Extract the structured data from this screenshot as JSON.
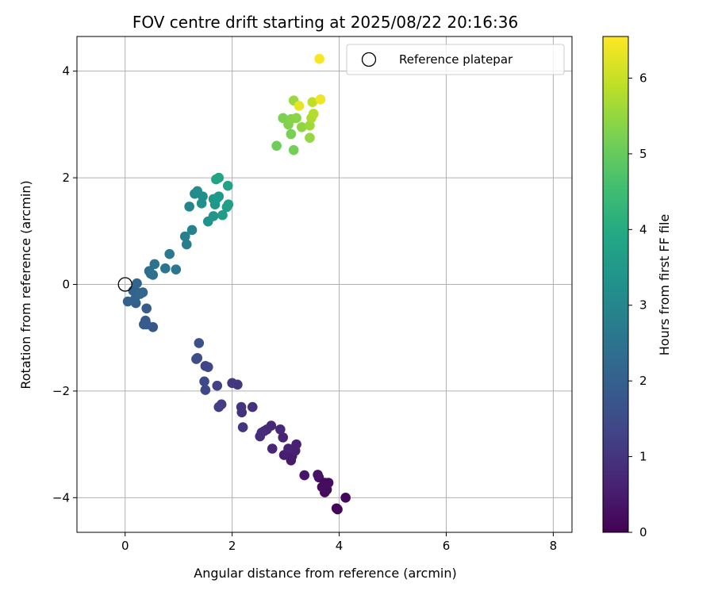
{
  "chart_data": {
    "type": "scatter",
    "title": "FOV centre drift starting at 2025/08/22 20:16:36",
    "xlabel": "Angular distance from reference (arcmin)",
    "ylabel": "Rotation from reference (arcmin)",
    "xlim": [
      -0.9,
      8.35
    ],
    "ylim": [
      -4.65,
      4.65
    ],
    "xticks": [
      0,
      2,
      4,
      6,
      8
    ],
    "yticks": [
      -4,
      -2,
      0,
      2,
      4
    ],
    "xtick_labels": [
      "0",
      "2",
      "4",
      "6",
      "8"
    ],
    "ytick_labels": [
      "−4",
      "−2",
      "0",
      "2",
      "4"
    ],
    "grid": true,
    "colormap": "viridis",
    "colorbar": {
      "label": "Hours from first FF file",
      "range": [
        0,
        6.55
      ],
      "ticks": [
        0,
        1,
        2,
        3,
        4,
        5,
        6
      ],
      "tick_labels": [
        "0",
        "1",
        "2",
        "3",
        "4",
        "5",
        "6"
      ]
    },
    "legend": {
      "position": "upper-right",
      "entries": [
        {
          "label": "Reference platepar",
          "marker": "open-circle"
        }
      ]
    },
    "reference_point": {
      "x": 0,
      "y": 0,
      "label": "Reference platepar"
    },
    "series": [
      {
        "points": [
          [
            3.95,
            -4.2
          ],
          [
            3.97,
            -4.22
          ],
          [
            4.12,
            -4.0
          ],
          [
            3.73,
            -3.9
          ],
          [
            3.77,
            -3.85
          ],
          [
            3.68,
            -3.8
          ],
          [
            3.8,
            -3.72
          ],
          [
            3.62,
            -3.62
          ],
          [
            3.6,
            -3.57
          ],
          [
            3.35,
            -3.58
          ],
          [
            3.73,
            -3.72
          ],
          [
            3.1,
            -3.3
          ],
          [
            3.12,
            -3.22
          ],
          [
            2.97,
            -3.2
          ],
          [
            3.18,
            -3.12
          ],
          [
            3.2,
            -3.0
          ],
          [
            3.05,
            -3.08
          ],
          [
            2.95,
            -2.87
          ],
          [
            2.75,
            -3.08
          ],
          [
            2.9,
            -2.72
          ],
          [
            2.73,
            -2.65
          ],
          [
            2.65,
            -2.72
          ],
          [
            2.6,
            -2.75
          ],
          [
            2.52,
            -2.85
          ],
          [
            2.55,
            -2.78
          ],
          [
            2.38,
            -2.3
          ],
          [
            2.18,
            -2.4
          ],
          [
            2.17,
            -2.3
          ],
          [
            2.2,
            -2.68
          ],
          [
            2.1,
            -1.88
          ],
          [
            2.0,
            -1.85
          ],
          [
            1.8,
            -2.25
          ],
          [
            1.75,
            -2.3
          ],
          [
            1.72,
            -1.9
          ],
          [
            1.5,
            -1.53
          ],
          [
            1.55,
            -1.55
          ],
          [
            1.5,
            -1.98
          ],
          [
            1.48,
            -1.82
          ],
          [
            1.35,
            -1.38
          ],
          [
            1.33,
            -1.4
          ],
          [
            1.38,
            -1.1
          ]
        ],
        "hours": [
          0.05,
          0.08,
          0.12,
          0.15,
          0.18,
          0.22,
          0.25,
          0.3,
          0.33,
          0.37,
          0.2,
          0.45,
          0.5,
          0.55,
          0.58,
          0.6,
          0.62,
          0.65,
          0.7,
          0.72,
          0.75,
          0.78,
          0.8,
          0.83,
          0.85,
          0.9,
          0.95,
          0.97,
          1.0,
          1.05,
          1.08,
          1.15,
          1.2,
          1.25,
          1.3,
          1.35,
          1.4,
          1.45,
          1.5,
          1.55,
          1.6
        ]
      },
      {
        "points": [
          [
            0.52,
            -0.8
          ],
          [
            0.38,
            -0.68
          ],
          [
            0.4,
            -0.75
          ],
          [
            0.4,
            -0.45
          ],
          [
            0.35,
            -0.75
          ],
          [
            0.2,
            -0.35
          ],
          [
            0.05,
            -0.32
          ],
          [
            0.18,
            -0.28
          ],
          [
            0.15,
            -0.12
          ],
          [
            0.22,
            -0.15
          ],
          [
            0.33,
            -0.15
          ],
          [
            0.22,
            0.02
          ],
          [
            0.28,
            -0.18
          ],
          [
            0.48,
            0.2
          ],
          [
            0.45,
            0.25
          ],
          [
            0.52,
            0.18
          ],
          [
            0.55,
            0.38
          ],
          [
            0.75,
            0.3
          ],
          [
            0.95,
            0.28
          ],
          [
            0.83,
            0.57
          ],
          [
            1.15,
            0.75
          ],
          [
            1.12,
            0.9
          ],
          [
            1.25,
            1.02
          ],
          [
            1.2,
            1.46
          ]
        ],
        "hours": [
          1.75,
          1.8,
          1.85,
          1.88,
          1.9,
          1.95,
          2.0,
          2.02,
          2.05,
          2.08,
          2.1,
          2.12,
          2.15,
          2.3,
          2.35,
          2.4,
          2.45,
          2.55,
          2.6,
          2.65,
          2.75,
          2.8,
          2.9,
          2.95
        ]
      },
      {
        "points": [
          [
            1.3,
            1.7
          ],
          [
            1.35,
            1.75
          ],
          [
            1.45,
            1.65
          ],
          [
            1.43,
            1.52
          ],
          [
            1.55,
            1.18
          ],
          [
            1.65,
            1.28
          ],
          [
            1.68,
            1.5
          ],
          [
            1.75,
            1.65
          ],
          [
            1.65,
            1.6
          ],
          [
            1.72,
            1.62
          ],
          [
            1.82,
            1.3
          ],
          [
            1.9,
            1.45
          ],
          [
            1.93,
            1.5
          ],
          [
            1.92,
            1.85
          ],
          [
            1.7,
            1.97
          ],
          [
            1.75,
            2.0
          ]
        ],
        "hours": [
          3.1,
          3.15,
          3.2,
          3.25,
          3.3,
          3.35,
          3.4,
          3.45,
          3.5,
          3.55,
          3.6,
          3.65,
          3.7,
          3.75,
          3.8,
          3.85
        ]
      },
      {
        "points": [
          [
            2.83,
            2.6
          ],
          [
            3.15,
            2.52
          ],
          [
            3.1,
            2.82
          ],
          [
            2.95,
            3.12
          ],
          [
            3.05,
            3.0
          ],
          [
            3.1,
            3.1
          ],
          [
            3.2,
            3.12
          ],
          [
            3.3,
            2.95
          ],
          [
            3.45,
            2.75
          ],
          [
            3.15,
            3.45
          ],
          [
            3.45,
            2.98
          ],
          [
            3.48,
            3.12
          ],
          [
            3.52,
            3.2
          ],
          [
            3.5,
            3.42
          ],
          [
            3.25,
            3.35
          ],
          [
            3.65,
            3.47
          ],
          [
            3.63,
            4.23
          ]
        ],
        "hours": [
          5.1,
          5.15,
          5.2,
          5.25,
          5.3,
          5.35,
          5.4,
          5.45,
          5.5,
          5.55,
          5.6,
          5.7,
          5.8,
          5.9,
          6.3,
          6.4,
          6.5
        ]
      }
    ]
  }
}
